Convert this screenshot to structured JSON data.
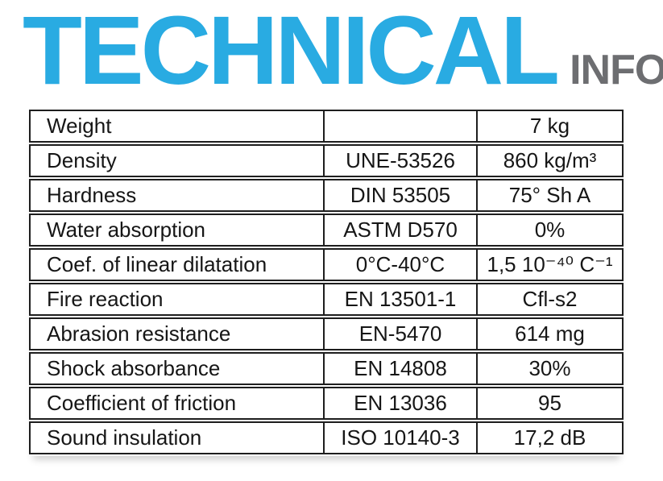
{
  "header": {
    "title": "TECHNICAL",
    "subtitle": "INFO",
    "title_color": "#29ABE2",
    "subtitle_color": "#6D6E71"
  },
  "table": {
    "border_color": "#1E1E1E",
    "text_color": "#161616",
    "columns": [
      "property",
      "standard",
      "value"
    ],
    "rows": [
      {
        "property": "Weight",
        "standard": "",
        "value": "7 kg"
      },
      {
        "property": "Density",
        "standard": "UNE-53526",
        "value": "860 kg/m³"
      },
      {
        "property": "Hardness",
        "standard": "DIN 53505",
        "value": "75° Sh A"
      },
      {
        "property": "Water absorption",
        "standard": "ASTM D570",
        "value": "0%"
      },
      {
        "property": "Coef. of linear dilatation",
        "standard": "0°C-40°C",
        "value": "1,5 10⁻⁴⁰ C⁻¹"
      },
      {
        "property": "Fire reaction",
        "standard": "EN 13501-1",
        "value": "Cfl-s2"
      },
      {
        "property": "Abrasion resistance",
        "standard": "EN-5470",
        "value": "614 mg"
      },
      {
        "property": "Shock absorbance",
        "standard": "EN 14808",
        "value": "30%"
      },
      {
        "property": "Coefficient of friction",
        "standard": "EN 13036",
        "value": "95"
      },
      {
        "property": "Sound insulation",
        "standard": "ISO 10140-3",
        "value": "17,2 dB"
      }
    ]
  }
}
